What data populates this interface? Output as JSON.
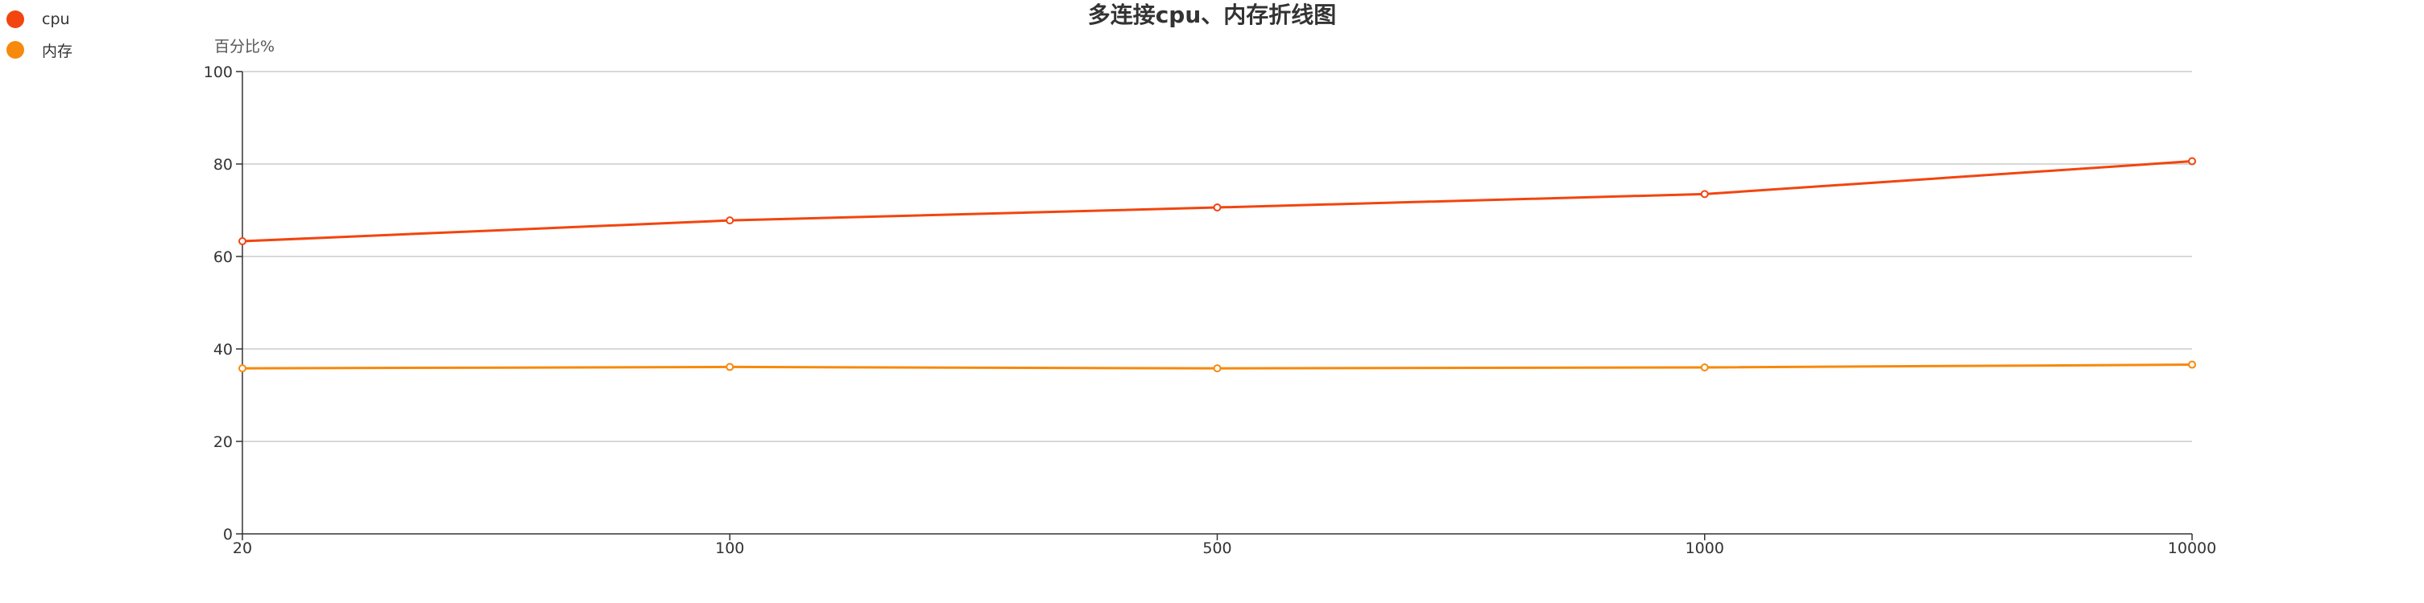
{
  "chart_data": {
    "type": "line",
    "title": "多连接cpu、内存折线图",
    "ylabel": "百分比%",
    "xlabel": "",
    "categories": [
      "20",
      "100",
      "500",
      "1000",
      "10000"
    ],
    "ylim": [
      0,
      100
    ],
    "yticks": [
      0,
      20,
      40,
      60,
      80,
      100
    ],
    "grid": true,
    "legend_position": "top-left",
    "series": [
      {
        "name": "cpu",
        "color": "#f2450f",
        "values": [
          63.3,
          67.8,
          70.6,
          73.5,
          80.6
        ]
      },
      {
        "name": "内存",
        "color": "#f7890c",
        "values": [
          35.8,
          36.1,
          35.8,
          36.0,
          36.6
        ]
      }
    ]
  }
}
